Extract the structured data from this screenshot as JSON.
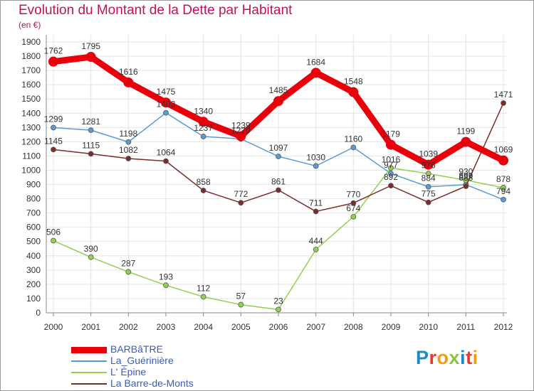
{
  "header": {
    "title": "Evolution du Montant de la Dette par Habitant",
    "subtitle": "(en €)"
  },
  "logo": {
    "text": "Proxiti",
    "letter_colors": [
      "#1e88c8",
      "#e23b2e",
      "#f39c12",
      "#8bc34a",
      "#1e88c8",
      "#e23b2e",
      "#f39c12"
    ]
  },
  "chart_data": {
    "type": "line",
    "x": [
      "2000",
      "2001",
      "2002",
      "2003",
      "2004",
      "2005",
      "2006",
      "2007",
      "2008",
      "2009",
      "2010",
      "2011",
      "2012"
    ],
    "ylim": [
      0,
      1900
    ],
    "yticks": [
      0,
      100,
      200,
      300,
      400,
      500,
      600,
      700,
      800,
      900,
      1000,
      1100,
      1200,
      1300,
      1400,
      1500,
      1600,
      1700,
      1800,
      1900
    ],
    "grid": true,
    "legend_position": "bottom-left",
    "series": [
      {
        "name": "BARBâTRE",
        "color": "#e8000b",
        "values": [
          1762,
          1795,
          1616,
          1475,
          1340,
          1239,
          1485,
          1684,
          1548,
          1179,
          1039,
          1199,
          1069
        ],
        "labels": [
          "1762",
          "1795",
          "1616",
          "1475",
          "1340",
          "1239",
          "1485",
          "1684",
          "1548",
          "1179",
          "1039",
          "1199",
          "1069"
        ]
      },
      {
        "name": "La_Guérinière",
        "color": "#5b9bd5",
        "values": [
          1299,
          1281,
          1198,
          1403,
          1237,
          1220,
          1097,
          1030,
          1160,
          977,
          884,
          899,
          794
        ],
        "labels": [
          "1299",
          "1281",
          "1198",
          "1403",
          "1237",
          "1220",
          "1097",
          "1030",
          "1160",
          "977",
          "884",
          "899",
          "794"
        ]
      },
      {
        "name": "L' Épine",
        "color": "#92d050",
        "values": [
          506,
          390,
          287,
          193,
          112,
          57,
          23,
          444,
          674,
          1016,
          976,
          930,
          878
        ],
        "labels": [
          "506",
          "390",
          "287",
          "193",
          "112",
          "57",
          "23",
          "444",
          "674",
          "1016",
          "976",
          "930",
          "878"
        ]
      },
      {
        "name": "La Barre-de-Monts",
        "color": "#7b2c2c",
        "values": [
          1145,
          1115,
          1082,
          1064,
          858,
          772,
          861,
          711,
          770,
          892,
          775,
          888,
          1471
        ],
        "labels": [
          "1145",
          "1115",
          "1082",
          "1064",
          "858",
          "772",
          "861",
          "711",
          "770",
          "892",
          "775",
          "888",
          "1471"
        ]
      }
    ]
  }
}
